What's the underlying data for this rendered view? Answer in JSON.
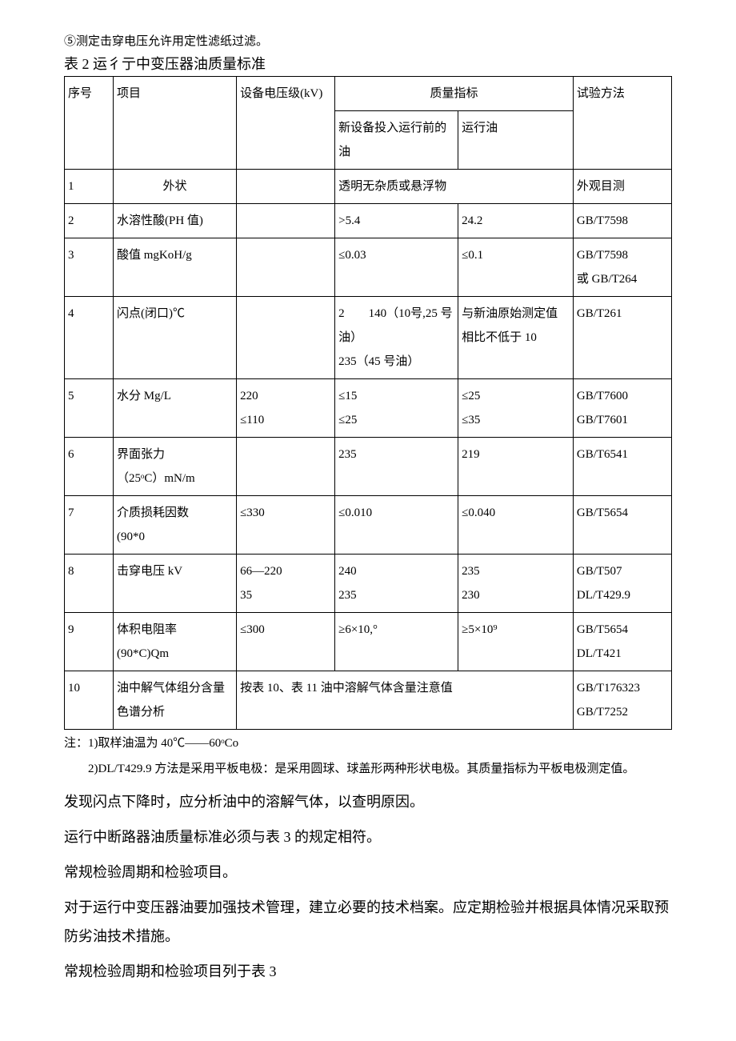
{
  "pre_note": "⑤测定击穿电压允许用定性滤纸过滤。",
  "table_title": "表 2 运彳亍中变压器油质量标准",
  "header": {
    "seq": "序号",
    "item": "项目",
    "volt": "设备电压级(kV)",
    "quality": "质量指标",
    "new_oil": "新设备投入运行前的油",
    "run_oil": "运行油",
    "method": "试验方法"
  },
  "rows": [
    {
      "seq": "1",
      "item": "外状",
      "volt": "",
      "new": "透明无杂质或悬浮物",
      "run": "",
      "method": "外观目测",
      "span_new_run": true
    },
    {
      "seq": "2",
      "item": "水溶性酸(PH 值)",
      "volt": "",
      "new": ">5.4",
      "run": "24.2",
      "method": "GB/T7598"
    },
    {
      "seq": "3",
      "item": "酸值 mgKoH/g",
      "volt": "",
      "new": "≤0.03",
      "run": "≤0.1",
      "method": "GB/T7598\n或 GB/T264"
    },
    {
      "seq": "4",
      "item": "闪点(闭口)℃",
      "volt": "",
      "new": "2　　140（10号,25 号油）\n235（45 号油）",
      "run": "与新油原始测定值相比不低于 10",
      "method": "GB/T261"
    },
    {
      "seq": "5",
      "item": "水分 Mg/L",
      "volt": "220\n≤110",
      "new": "≤15\n≤25",
      "run": "≤25\n≤35",
      "method": "GB/T7600\nGB/T7601"
    },
    {
      "seq": "6",
      "item": "界面张力\n（25ᵒC）mN/m",
      "volt": "",
      "new": "235",
      "run": "219",
      "method": "GB/T6541"
    },
    {
      "seq": "7",
      "item": "介质损耗因数\n(90*0",
      "volt": "≤330",
      "new": "≤0.010",
      "run": "≤0.040",
      "method": "GB/T5654"
    },
    {
      "seq": "8",
      "item": "击穿电压 kV",
      "volt": "66—220\n35",
      "new": "240\n235",
      "run": "235\n230",
      "method": "GB/T507\nDL/T429.9"
    },
    {
      "seq": "9",
      "item": "体积电阻率\n(90*C)Qm",
      "volt": "≤300",
      "new": "≥6×10,°",
      "run": "≥5×10⁹",
      "method": "GB/T5654\nDL/T421"
    },
    {
      "seq": "10",
      "item": "油中解气体组分含量色谱分析",
      "volt": "按表 10、表 11 油中溶解气体含量注意值",
      "new": "",
      "run": "",
      "method": "GB/T176323\nGB/T7252",
      "span_volt_new_run": true
    }
  ],
  "footnotes": [
    "注：1)取样油温为 40℃——60ᵒCo",
    "　　2)DL/T429.9 方法是采用平板电极：是采用圆球、球盖形两种形状电极。其质量指标为平板电极测定值。"
  ],
  "body_paragraphs": [
    "发现闪点下降时，应分析油中的溶解气体，以查明原因。",
    "运行中断路器油质量标准必须与表 3 的规定相符。",
    "常规检验周期和检验项目。",
    "对于运行中变压器油要加强技术管理，建立必要的技术档案。应定期检验并根据具体情况采取预防劣油技术措施。",
    "常规检验周期和检验项目列于表 3"
  ]
}
